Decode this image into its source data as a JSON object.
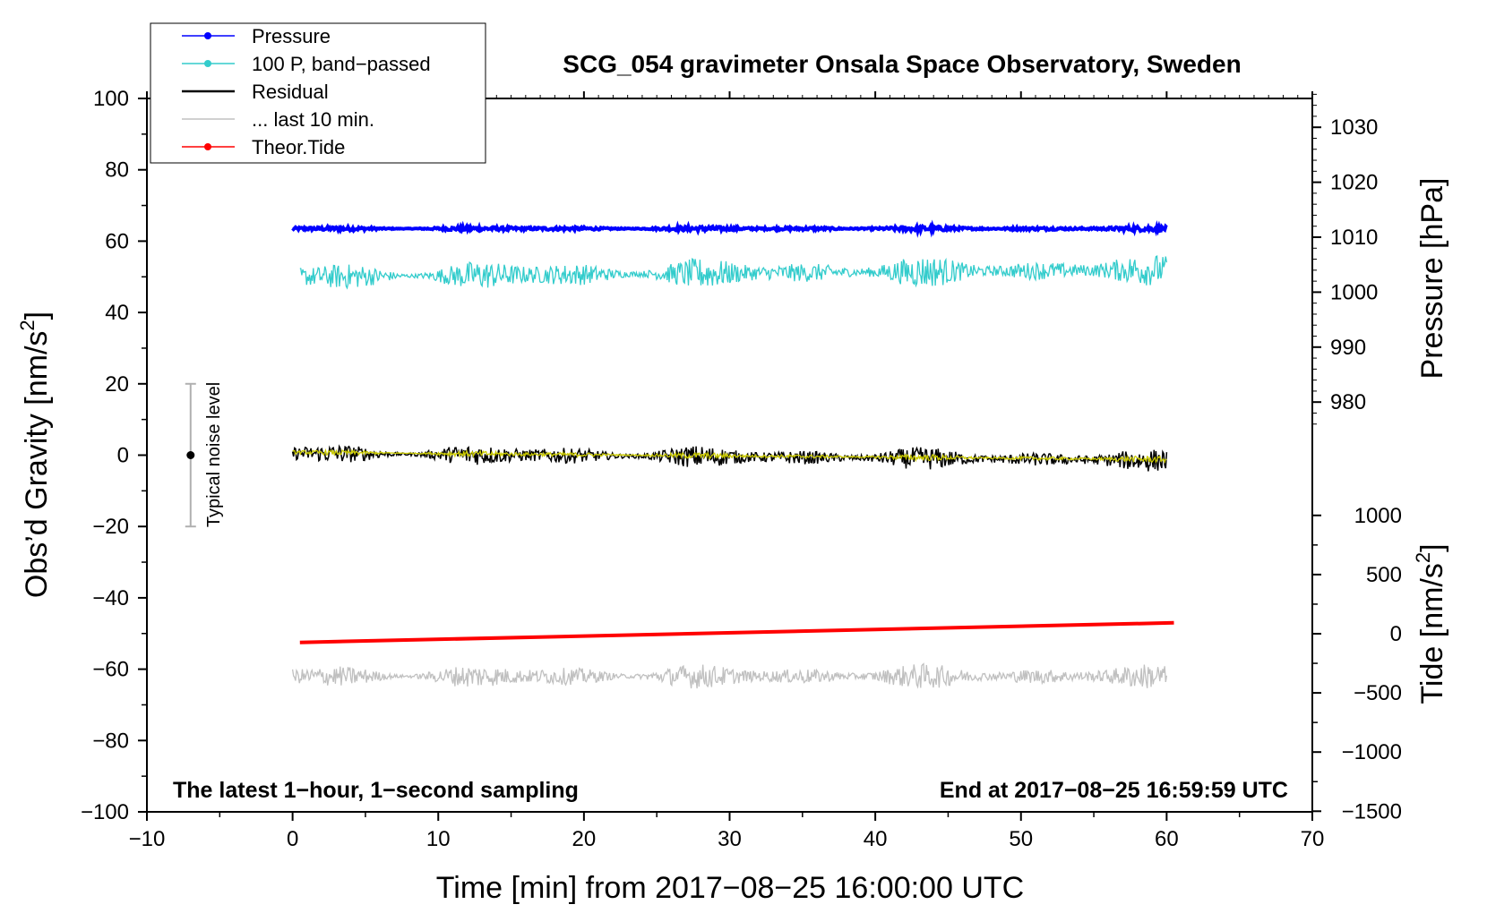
{
  "chart_data": {
    "type": "line",
    "title": "SCG_054 gravimeter Onsala Space Observatory, Sweden",
    "xlabel": "Time [min] from 2017−08−25 16:00:00 UTC",
    "ylabel": "Obs’d Gravity [nm/s",
    "ylabel_sup": "2",
    "ylabel_end": "]",
    "y2label_pressure": "Pressure [hPa]",
    "y2label_tide": "Tide [nm/s",
    "y2label_tide_sup": "2",
    "y2label_tide_end": "]",
    "xlim": [
      -10,
      70
    ],
    "ylim": [
      -100,
      100
    ],
    "xticks": [
      -10,
      0,
      10,
      20,
      30,
      40,
      50,
      60,
      70
    ],
    "xtick_labels": [
      "−10",
      "0",
      "10",
      "20",
      "30",
      "40",
      "50",
      "60",
      "70"
    ],
    "yticks": [
      -100,
      -80,
      -60,
      -40,
      -20,
      0,
      20,
      40,
      60,
      80,
      100
    ],
    "ytick_labels": [
      "−100",
      "−80",
      "−60",
      "−40",
      "−20",
      "0",
      "20",
      "40",
      "60",
      "80",
      "100"
    ],
    "pressure_axis": {
      "ticks": [
        980,
        990,
        1000,
        1010,
        1020,
        1030
      ],
      "tick_labels": [
        "980",
        "990",
        "1000",
        "1010",
        "1020",
        "1030"
      ]
    },
    "tide_axis": {
      "ticks": [
        -1500,
        -1000,
        -500,
        0,
        500,
        1000
      ],
      "tick_labels": [
        "−1500",
        "−1000",
        "−500",
        "0",
        "500",
        "1000"
      ]
    },
    "legend": {
      "position": "top-left",
      "entries": [
        {
          "label": "Pressure",
          "color": "#0000ff",
          "marker": true
        },
        {
          "label": "100 P, band−passed",
          "color": "#33cccc",
          "marker": true
        },
        {
          "label": "Residual",
          "color": "#000000",
          "marker": false
        },
        {
          "label": "... last 10 min.",
          "color": "#c0c0c0",
          "marker": false
        },
        {
          "label": "Theor.Tide",
          "color": "#ff0000",
          "marker": true
        }
      ]
    },
    "annotations": {
      "left": "The latest 1−hour, 1−second sampling",
      "right": "End at 2017−08−25 16:59:59 UTC",
      "noise_label": "Typical noise level",
      "noise_range": [
        -20,
        20
      ],
      "noise_x": -7
    },
    "series": [
      {
        "name": "Pressure",
        "color": "#0000ff",
        "x": [
          0,
          60
        ],
        "y": [
          63.5,
          63.5
        ],
        "noise_amp": 0.4
      },
      {
        "name": "100 P, band−passed",
        "color": "#33cccc",
        "x": [
          0.5,
          60
        ],
        "y": [
          50,
          52
        ],
        "noise_amp": 2.5
      },
      {
        "name": "Residual",
        "color": "#000000",
        "x": [
          0,
          60
        ],
        "y": [
          0.5,
          -1.5
        ],
        "noise_amp": 1.8
      },
      {
        "name": "",
        "color": "#cccc00",
        "x": [
          0,
          60
        ],
        "y": [
          0.8,
          -1.2
        ],
        "noise_amp": 0.5
      },
      {
        "name": "... last 10 min.",
        "color": "#c0c0c0",
        "x": [
          0,
          60
        ],
        "y": [
          -62,
          -62
        ],
        "noise_amp": 2.0
      },
      {
        "name": "Theor.Tide",
        "color": "#ff0000",
        "x": [
          0.5,
          60.5
        ],
        "y": [
          -52.5,
          -47
        ],
        "noise_amp": 0
      }
    ]
  }
}
